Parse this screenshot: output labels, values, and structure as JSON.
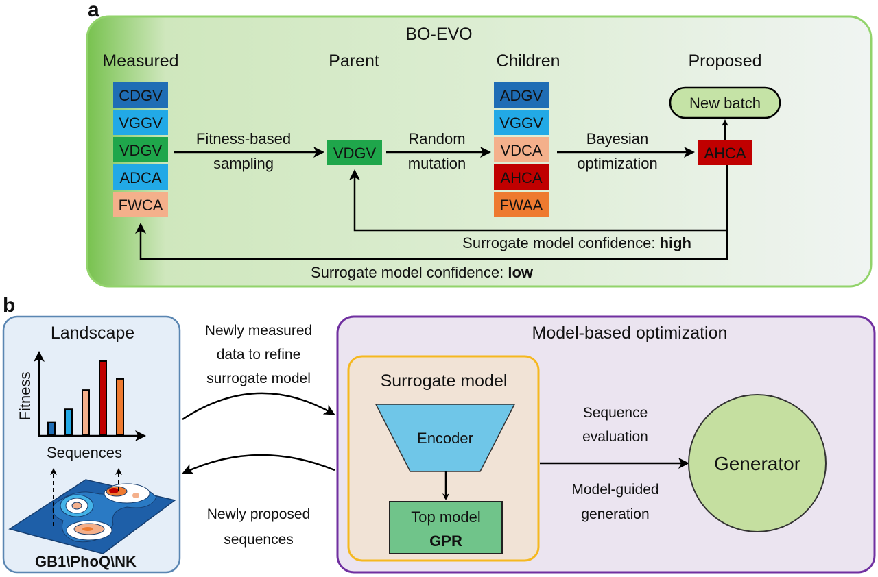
{
  "panel_a": {
    "letter": "a",
    "title": "BO-EVO",
    "headers": {
      "measured": "Measured",
      "parent": "Parent",
      "children": "Children",
      "proposed": "Proposed"
    },
    "measured": [
      {
        "seq": "CDGV",
        "color": "#1f6db5"
      },
      {
        "seq": "VGGV",
        "color": "#22a9e6"
      },
      {
        "seq": "VDGV",
        "color": "#1fa64b"
      },
      {
        "seq": "ADCA",
        "color": "#22a9e6"
      },
      {
        "seq": "FWCA",
        "color": "#f4b08b"
      }
    ],
    "parent": {
      "seq": "VDGV",
      "color": "#1fa64b"
    },
    "children": [
      {
        "seq": "ADGV",
        "color": "#1f6db5"
      },
      {
        "seq": "VGGV",
        "color": "#22a9e6"
      },
      {
        "seq": "VDCA",
        "color": "#f4b08b"
      },
      {
        "seq": "AHCA",
        "color": "#c00000"
      },
      {
        "seq": "FWAA",
        "color": "#ee7a30"
      }
    ],
    "proposed": {
      "seq": "AHCA",
      "color": "#c00000",
      "new_batch": "New batch"
    },
    "arrows": {
      "sampling_1": "Fitness-based",
      "sampling_2": "sampling",
      "mutation_1": "Random",
      "mutation_2": "mutation",
      "bo_1": "Bayesian",
      "bo_2": "optimization"
    },
    "loop_high": {
      "prefix": "Surrogate model confidence: ",
      "level": "high"
    },
    "loop_low": {
      "prefix": "Surrogate model confidence: ",
      "level": "low"
    }
  },
  "panel_b": {
    "letter": "b",
    "landscape": {
      "title": "Landscape",
      "ylabel": "Fitness",
      "xlabel": "Sequences",
      "bars": [
        {
          "value": 0.17,
          "color": "#1f6db5"
        },
        {
          "value": 0.35,
          "color": "#22a9e6"
        },
        {
          "value": 0.61,
          "color": "#f4b08b"
        },
        {
          "value": 1.0,
          "color": "#c00000"
        },
        {
          "value": 0.76,
          "color": "#ee7a30"
        }
      ],
      "datasets": "GB1\\PhoQ\\NK"
    },
    "to_model": [
      "Newly measured",
      "data to refine",
      "surrogate model"
    ],
    "to_landscape": [
      "Newly proposed",
      "sequences"
    ],
    "mbo": {
      "title": "Model-based optimization",
      "surrogate_title": "Surrogate model",
      "encoder": "Encoder",
      "top_model": "Top model",
      "top_model_type": "GPR",
      "eval_1": "Sequence",
      "eval_2": "evaluation",
      "gen_1": "Model-guided",
      "gen_2": "generation",
      "generator": "Generator"
    }
  }
}
